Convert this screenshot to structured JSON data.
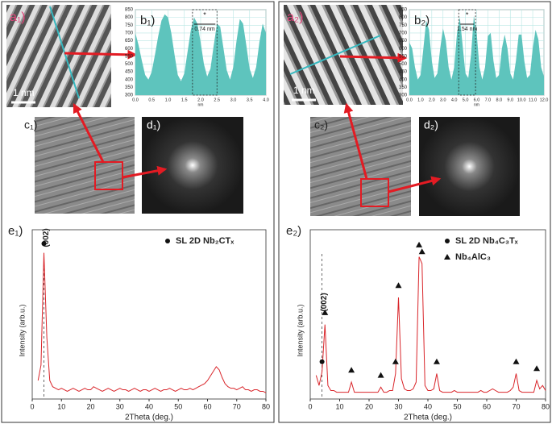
{
  "panels": [
    {
      "a": "a₁)",
      "scale": "1 nm",
      "c": "c₁)",
      "d": "d₁)"
    },
    {
      "a": "a₂)",
      "scale": "1 nm",
      "c": "c₂)",
      "d": "d₂)"
    }
  ],
  "chart_data": [
    {
      "type": "area",
      "label": "b₁)",
      "color": "#5ec4bd",
      "grid": true,
      "xlabel": "nm",
      "x": [
        0,
        0.1,
        0.2,
        0.3,
        0.4,
        0.5,
        0.6,
        0.7,
        0.8,
        0.9,
        1.0,
        1.1,
        1.2,
        1.3,
        1.4,
        1.5,
        1.6,
        1.7,
        1.8,
        1.9,
        2.0,
        2.1,
        2.2,
        2.3,
        2.4,
        2.5,
        2.6,
        2.7,
        2.8,
        2.9,
        3.0,
        3.1,
        3.2,
        3.3,
        3.4,
        3.5,
        3.6,
        3.7,
        3.8,
        3.9,
        4.0
      ],
      "values": [
        700,
        620,
        520,
        430,
        400,
        450,
        560,
        680,
        780,
        820,
        800,
        700,
        560,
        430,
        390,
        440,
        580,
        720,
        800,
        760,
        640,
        500,
        420,
        470,
        620,
        760,
        740,
        600,
        460,
        400,
        480,
        650,
        790,
        760,
        620,
        470,
        410,
        480,
        640,
        760,
        700
      ],
      "xlim": [
        0,
        4
      ],
      "xticks": [
        {
          "value": 0,
          "label": "0.0"
        },
        {
          "value": 0.5,
          "label": "0.5"
        },
        {
          "value": 1,
          "label": "1.0"
        },
        {
          "value": 1.5,
          "label": "1.5"
        },
        {
          "value": 2,
          "label": "2.0"
        },
        {
          "value": 2.5,
          "label": "2.5"
        },
        {
          "value": 3,
          "label": "3.0"
        },
        {
          "value": 3.5,
          "label": "3.5"
        },
        {
          "value": 4,
          "label": "4.0"
        }
      ],
      "ylim": [
        300,
        850
      ],
      "yticks": [
        300,
        350,
        400,
        450,
        500,
        550,
        600,
        650,
        700,
        750,
        800,
        850
      ],
      "annotation": {
        "text": "0.74 nm",
        "star": "*",
        "range": [
          1.75,
          2.5
        ]
      }
    },
    {
      "type": "line",
      "label": "e₁)",
      "color": "#d9252a",
      "xlabel": "2Theta (deg.)",
      "ylabel": "Intensity (arb.u.)",
      "x": [
        2,
        3,
        4,
        5,
        6,
        7,
        8,
        9,
        10,
        11,
        12,
        13,
        14,
        15,
        16,
        17,
        18,
        19,
        20,
        21,
        22,
        23,
        24,
        25,
        26,
        27,
        28,
        29,
        30,
        31,
        32,
        33,
        34,
        35,
        36,
        37,
        38,
        39,
        40,
        41,
        42,
        43,
        44,
        45,
        46,
        47,
        48,
        49,
        50,
        51,
        52,
        53,
        54,
        55,
        56,
        57,
        58,
        59,
        60,
        61,
        62,
        63,
        64,
        65,
        66,
        67,
        68,
        69,
        70,
        71,
        72,
        73,
        74,
        75,
        76,
        77,
        78,
        79,
        80
      ],
      "values": [
        12,
        22,
        95,
        40,
        12,
        8,
        7,
        6,
        7,
        6,
        5,
        6,
        7,
        6,
        5,
        6,
        7,
        6,
        6,
        8,
        7,
        6,
        5,
        6,
        7,
        6,
        5,
        6,
        7,
        6,
        6,
        5,
        6,
        7,
        6,
        5,
        6,
        6,
        5,
        6,
        7,
        6,
        5,
        6,
        6,
        7,
        6,
        5,
        6,
        7,
        6,
        6,
        7,
        6,
        7,
        8,
        9,
        10,
        12,
        15,
        18,
        21,
        19,
        14,
        10,
        8,
        7,
        7,
        6,
        7,
        8,
        6,
        6,
        5,
        6,
        6,
        5,
        5,
        4
      ],
      "xlim": [
        0,
        80
      ],
      "xticks": [
        0,
        10,
        20,
        30,
        40,
        50,
        60,
        70,
        80
      ],
      "ylim": [
        0,
        110
      ],
      "legend": [
        {
          "shape": "circle",
          "text": "SL 2D Nb₂CTₓ"
        }
      ],
      "markers": [
        {
          "shape": "circle",
          "x": 4,
          "y": 101
        }
      ],
      "reflection": {
        "x": 4,
        "label": "(002)"
      }
    },
    {
      "type": "area",
      "label": "b₂)",
      "color": "#5ec4bd",
      "grid": true,
      "xlabel": "nm",
      "x": [
        0,
        0.25,
        0.5,
        0.75,
        1,
        1.25,
        1.5,
        1.75,
        2,
        2.25,
        2.5,
        2.75,
        3,
        3.25,
        3.5,
        3.75,
        4,
        4.25,
        4.5,
        4.75,
        5,
        5.25,
        5.5,
        5.75,
        6,
        6.25,
        6.5,
        6.75,
        7,
        7.25,
        7.5,
        7.75,
        8,
        8.25,
        8.5,
        8.75,
        9,
        9.25,
        9.5,
        9.75,
        10,
        10.25,
        10.5,
        10.75,
        11,
        11.25,
        11.5,
        11.75,
        12
      ],
      "values": [
        640,
        600,
        480,
        400,
        430,
        600,
        780,
        720,
        520,
        410,
        440,
        600,
        730,
        650,
        480,
        400,
        480,
        700,
        800,
        620,
        440,
        410,
        560,
        810,
        700,
        480,
        400,
        480,
        680,
        700,
        520,
        410,
        430,
        600,
        690,
        600,
        440,
        400,
        520,
        690,
        690,
        520,
        410,
        430,
        600,
        720,
        660,
        480,
        420
      ],
      "xlim": [
        0,
        12
      ],
      "xticks": [
        {
          "value": 0,
          "label": "0.0"
        },
        {
          "value": 1,
          "label": "1.0"
        },
        {
          "value": 2,
          "label": "2.0"
        },
        {
          "value": 3,
          "label": "3.0"
        },
        {
          "value": 4,
          "label": "4.0"
        },
        {
          "value": 5,
          "label": "5.0"
        },
        {
          "value": 6,
          "label": "6.0"
        },
        {
          "value": 7,
          "label": "7.0"
        },
        {
          "value": 8,
          "label": "8.0"
        },
        {
          "value": 9,
          "label": "9.0"
        },
        {
          "value": 10,
          "label": "10.0"
        },
        {
          "value": 11,
          "label": "11.0"
        },
        {
          "value": 12,
          "label": "12.0"
        }
      ],
      "ylim": [
        300,
        850
      ],
      "yticks": [
        300,
        350,
        400,
        450,
        500,
        550,
        600,
        650,
        700,
        750,
        800,
        850
      ],
      "annotation": {
        "text": "1.54 nm",
        "star": "*",
        "range": [
          4.4,
          5.9
        ]
      }
    },
    {
      "type": "line",
      "label": "e₂)",
      "color": "#d9252a",
      "xlabel": "2Theta (deg.)",
      "ylabel": "Intensity (arb.u.)",
      "x": [
        2,
        3,
        4,
        5,
        6,
        7,
        8,
        9,
        10,
        11,
        12,
        13,
        14,
        15,
        16,
        17,
        18,
        19,
        20,
        21,
        22,
        23,
        24,
        25,
        26,
        27,
        28,
        29,
        30,
        31,
        32,
        33,
        34,
        35,
        36,
        37,
        38,
        39,
        40,
        41,
        42,
        43,
        44,
        45,
        46,
        47,
        48,
        49,
        50,
        51,
        52,
        53,
        54,
        55,
        56,
        57,
        58,
        59,
        60,
        61,
        62,
        63,
        64,
        65,
        66,
        67,
        68,
        69,
        70,
        71,
        72,
        73,
        74,
        75,
        76,
        77,
        78,
        79,
        80
      ],
      "values": [
        14,
        8,
        16,
        44,
        8,
        5,
        5,
        4,
        4,
        4,
        4,
        4,
        10,
        4,
        4,
        4,
        4,
        4,
        4,
        4,
        4,
        4,
        7,
        4,
        4,
        5,
        5,
        15,
        60,
        12,
        6,
        5,
        5,
        6,
        10,
        84,
        80,
        8,
        5,
        5,
        6,
        15,
        5,
        4,
        4,
        4,
        4,
        5,
        4,
        4,
        4,
        4,
        4,
        4,
        4,
        4,
        5,
        4,
        4,
        5,
        6,
        5,
        4,
        4,
        4,
        4,
        5,
        7,
        15,
        5,
        4,
        4,
        4,
        4,
        4,
        11,
        6,
        8,
        5
      ],
      "xlim": [
        0,
        80
      ],
      "xticks": [
        0,
        10,
        20,
        30,
        40,
        50,
        60,
        70,
        80
      ],
      "ylim": [
        0,
        100
      ],
      "legend": [
        {
          "shape": "circle",
          "text": "SL 2D Nb₄C₃Tₓ"
        },
        {
          "shape": "triangle",
          "text": "Nb₄AlC₃"
        }
      ],
      "markers": [
        {
          "shape": "circle",
          "x": 4,
          "y": 22
        },
        {
          "shape": "triangle",
          "x": 5,
          "y": 51
        },
        {
          "shape": "triangle",
          "x": 14,
          "y": 17
        },
        {
          "shape": "triangle",
          "x": 24,
          "y": 14
        },
        {
          "shape": "triangle",
          "x": 29,
          "y": 22
        },
        {
          "shape": "triangle",
          "x": 30,
          "y": 67
        },
        {
          "shape": "triangle",
          "x": 37,
          "y": 91
        },
        {
          "shape": "triangle",
          "x": 38,
          "y": 87
        },
        {
          "shape": "triangle",
          "x": 43,
          "y": 22
        },
        {
          "shape": "triangle",
          "x": 70,
          "y": 22
        },
        {
          "shape": "triangle",
          "x": 77,
          "y": 18
        }
      ],
      "reflection": {
        "x": 4,
        "label": "(002)"
      }
    }
  ]
}
